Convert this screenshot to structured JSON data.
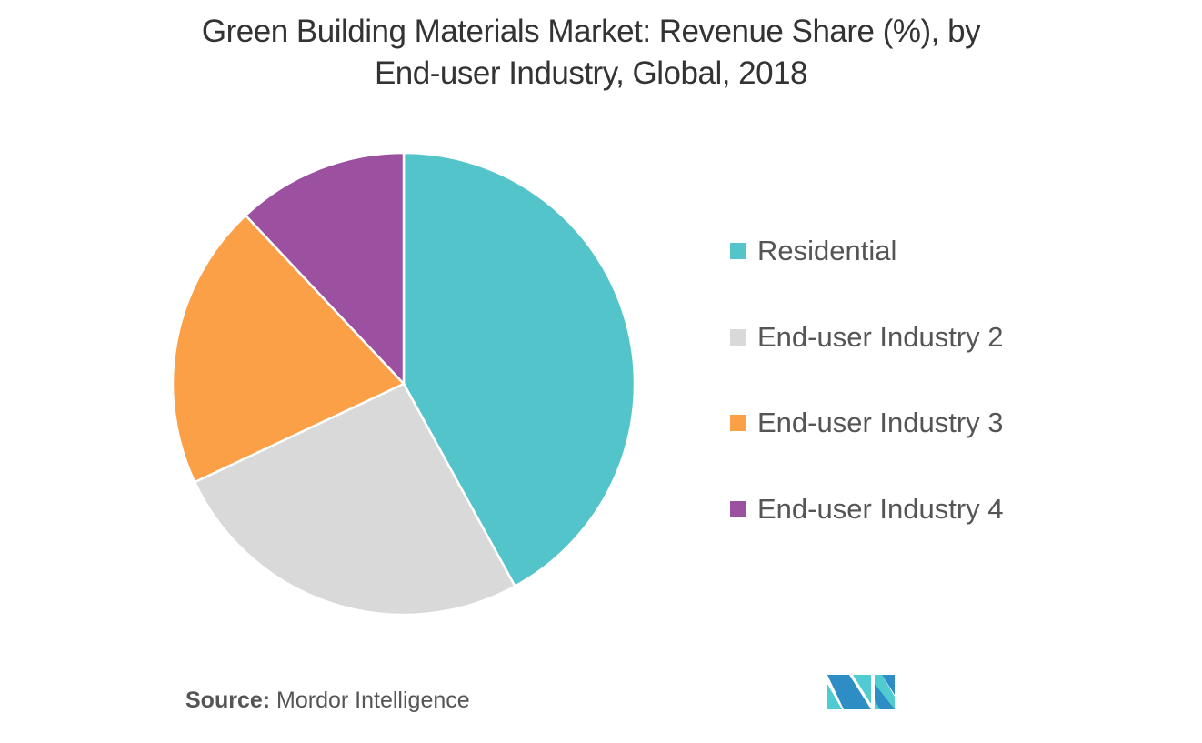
{
  "title_line1": "Green Building Materials Market: Revenue Share (%), by",
  "title_line2": "End-user Industry, Global, 2018",
  "chart_data": {
    "type": "pie",
    "title": "Green Building Materials Market: Revenue Share (%), by End-user Industry, Global, 2018",
    "categories": [
      "Residential",
      "End-user Industry 2",
      "End-user Industry 3",
      "End-user Industry 4"
    ],
    "values": [
      42,
      26,
      20,
      12
    ],
    "colors": [
      "#52C4CA",
      "#D9D9D9",
      "#FCA048",
      "#9B50A0"
    ],
    "legend_position": "right",
    "start_angle": "top, clockwise"
  },
  "source_label": "Source:",
  "source_value": "Mordor Intelligence",
  "logo_colors": [
    "#2E8DC4",
    "#4FCBD1"
  ]
}
